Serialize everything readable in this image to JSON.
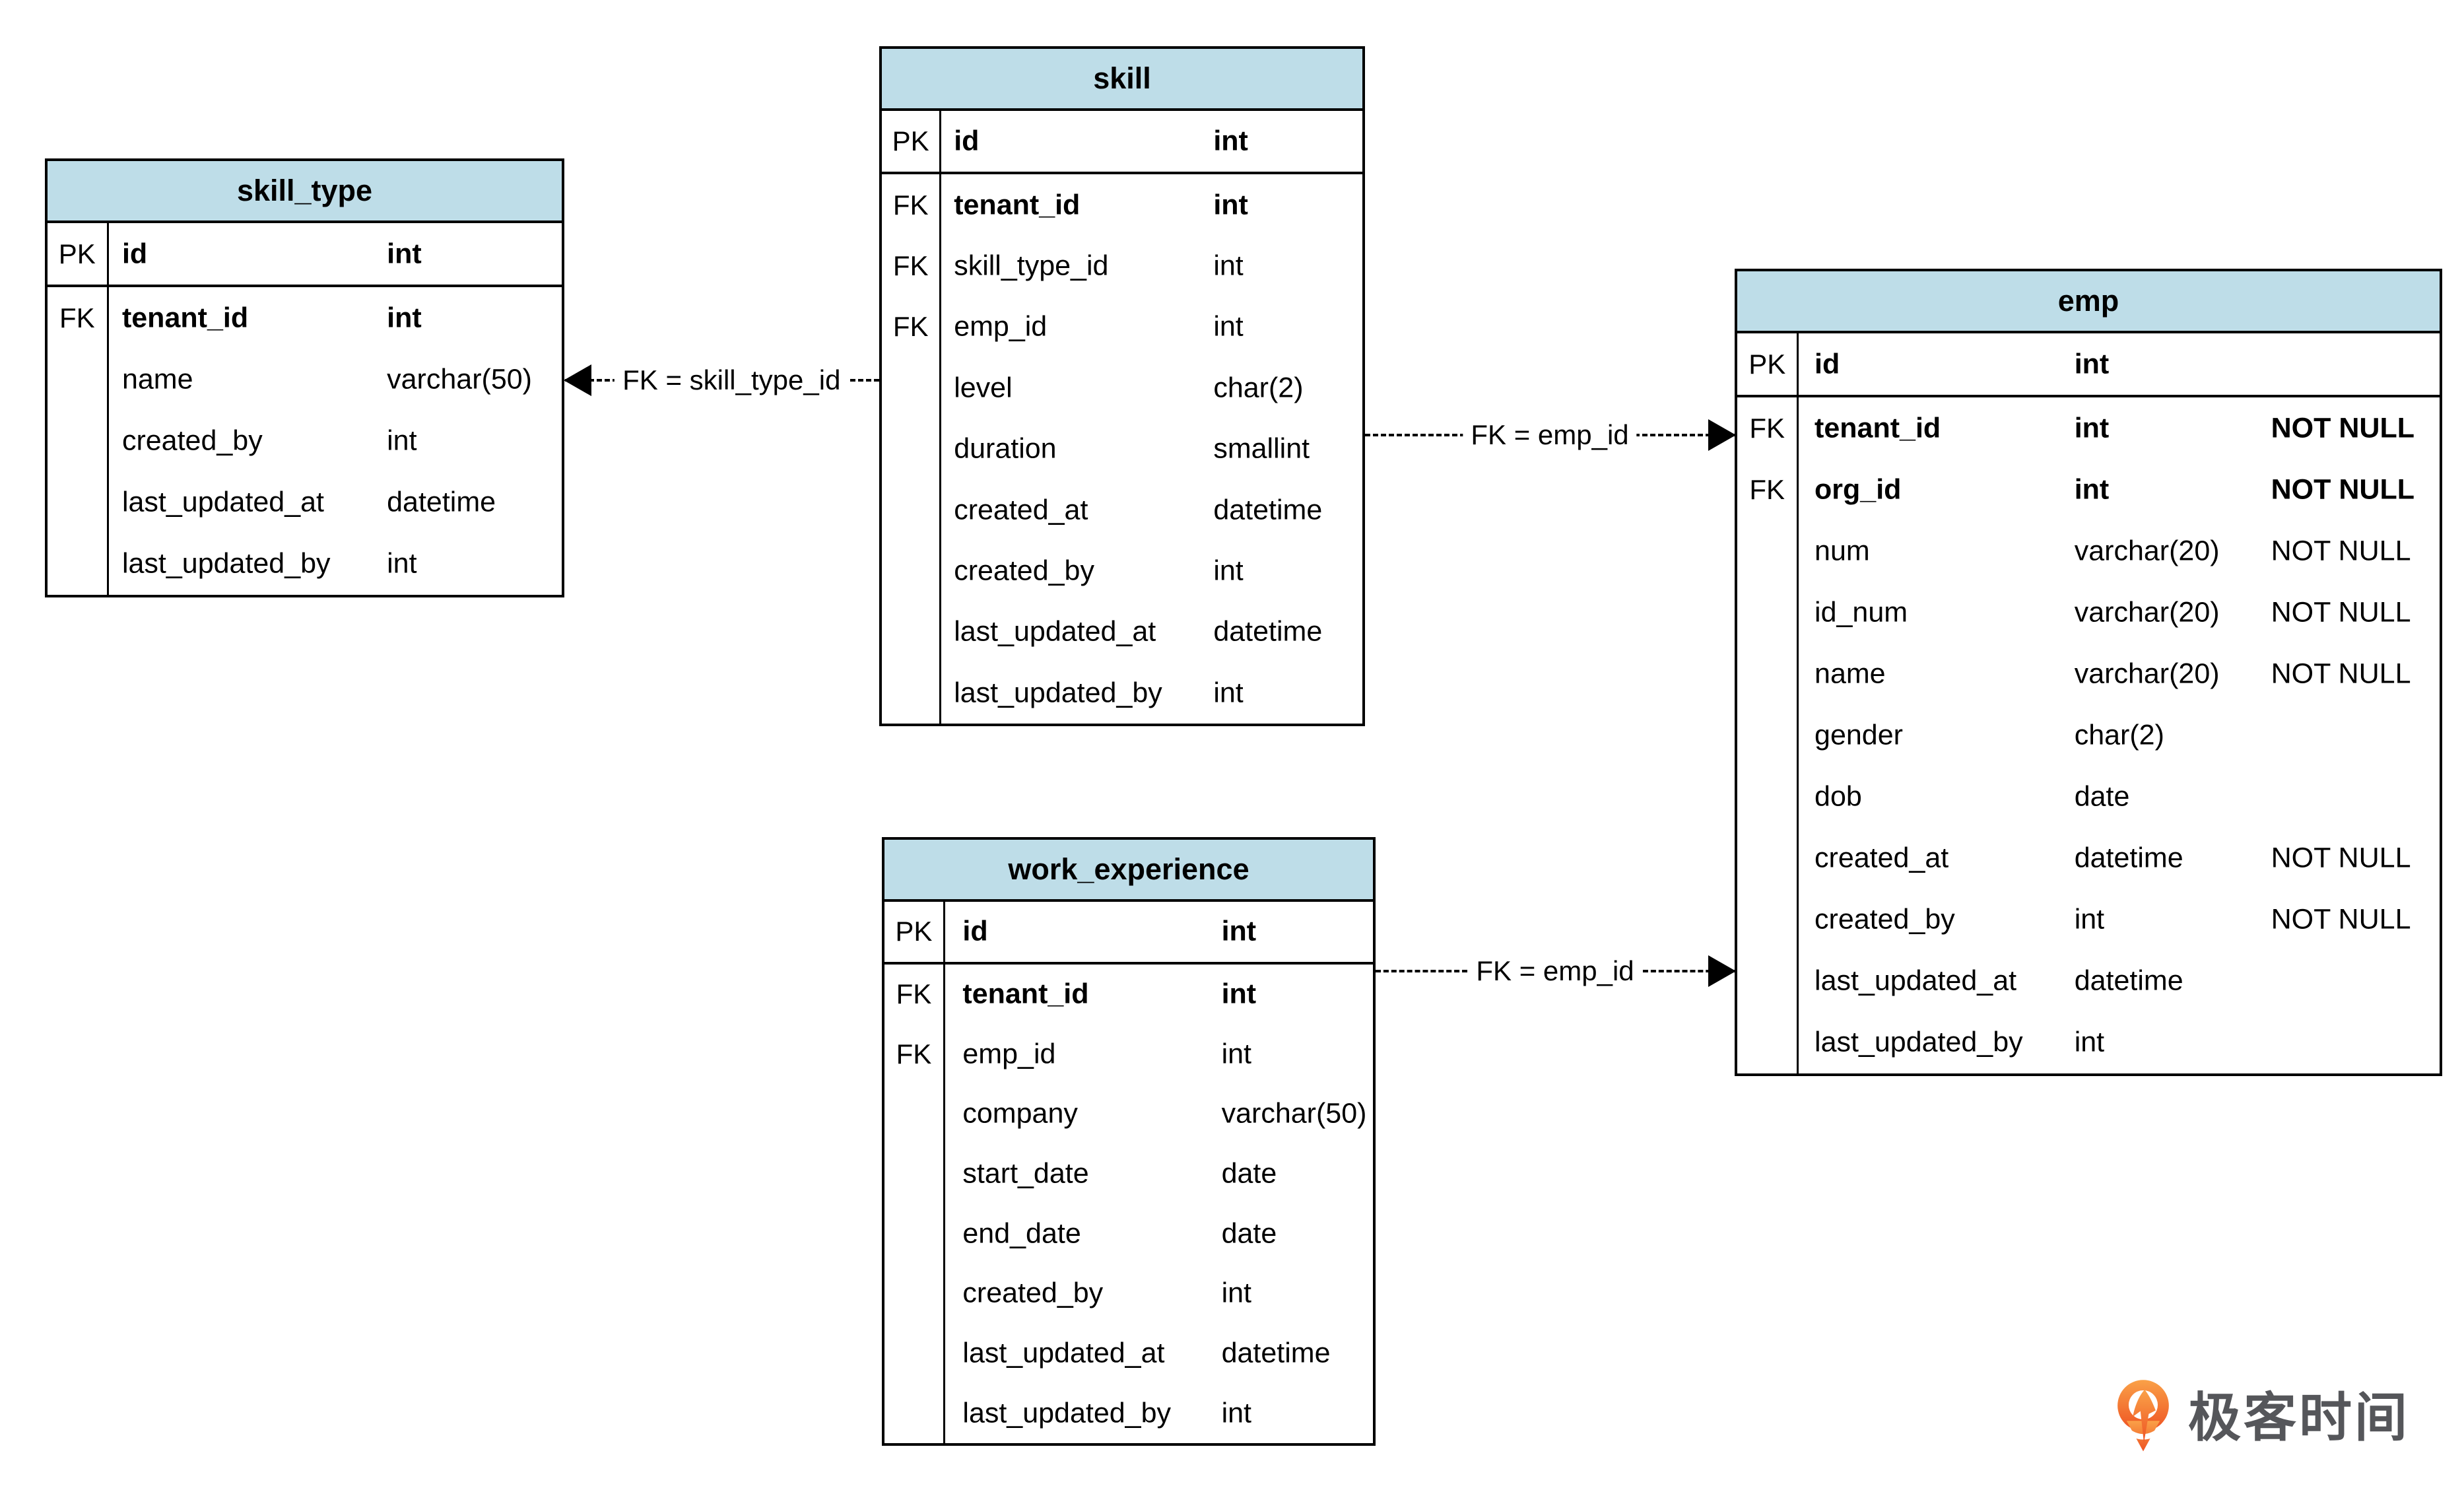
{
  "colors": {
    "table_header_bg": "#bedde8",
    "border": "#000000",
    "background": "#ffffff",
    "logo_orange_light": "#faa148",
    "logo_orange_dark": "#ee5222",
    "logo_text_color": "#55565a"
  },
  "tables": [
    {
      "title": "skill_type",
      "rows": [
        {
          "key": "PK",
          "field": "id",
          "type": "int",
          "constraint": "",
          "bold": true,
          "pk": true
        },
        {
          "key": "FK",
          "field": "tenant_id",
          "type": "int",
          "constraint": "",
          "bold": true
        },
        {
          "key": "",
          "field": "name",
          "type": "varchar(50)",
          "constraint": ""
        },
        {
          "key": "",
          "field": "created_by",
          "type": "int",
          "constraint": ""
        },
        {
          "key": "",
          "field": "last_updated_at",
          "type": "datetime",
          "constraint": ""
        },
        {
          "key": "",
          "field": "last_updated_by",
          "type": "int",
          "constraint": ""
        }
      ]
    },
    {
      "title": "skill",
      "rows": [
        {
          "key": "PK",
          "field": "id",
          "type": "int",
          "constraint": "",
          "bold": true,
          "pk": true
        },
        {
          "key": "FK",
          "field": "tenant_id",
          "type": "int",
          "constraint": "",
          "bold": true
        },
        {
          "key": "FK",
          "field": "skill_type_id",
          "type": "int",
          "constraint": ""
        },
        {
          "key": "FK",
          "field": "emp_id",
          "type": "int",
          "constraint": ""
        },
        {
          "key": "",
          "field": "level",
          "type": "char(2)",
          "constraint": ""
        },
        {
          "key": "",
          "field": "duration",
          "type": "smallint",
          "constraint": ""
        },
        {
          "key": "",
          "field": "created_at",
          "type": "datetime",
          "constraint": ""
        },
        {
          "key": "",
          "field": "created_by",
          "type": "int",
          "constraint": ""
        },
        {
          "key": "",
          "field": "last_updated_at",
          "type": "datetime",
          "constraint": ""
        },
        {
          "key": "",
          "field": "last_updated_by",
          "type": "int",
          "constraint": ""
        }
      ]
    },
    {
      "title": "work_experience",
      "rows": [
        {
          "key": "PK",
          "field": "id",
          "type": "int",
          "constraint": "",
          "bold": true,
          "pk": true
        },
        {
          "key": "FK",
          "field": "tenant_id",
          "type": "int",
          "constraint": "",
          "bold": true
        },
        {
          "key": "FK",
          "field": "emp_id",
          "type": "int",
          "constraint": ""
        },
        {
          "key": "",
          "field": "company",
          "type": "varchar(50)",
          "constraint": ""
        },
        {
          "key": "",
          "field": "start_date",
          "type": "date",
          "constraint": ""
        },
        {
          "key": "",
          "field": "end_date",
          "type": "date",
          "constraint": ""
        },
        {
          "key": "",
          "field": "created_by",
          "type": "int",
          "constraint": ""
        },
        {
          "key": "",
          "field": "last_updated_at",
          "type": "datetime",
          "constraint": ""
        },
        {
          "key": "",
          "field": "last_updated_by",
          "type": "int",
          "constraint": ""
        }
      ]
    },
    {
      "title": "emp",
      "rows": [
        {
          "key": "PK",
          "field": "id",
          "type": "int",
          "constraint": "",
          "bold": true,
          "pk": true
        },
        {
          "key": "FK",
          "field": "tenant_id",
          "type": "int",
          "constraint": "NOT NULL",
          "bold": true
        },
        {
          "key": "FK",
          "field": "org_id",
          "type": "int",
          "constraint": "NOT NULL",
          "bold": true
        },
        {
          "key": "",
          "field": "num",
          "type": "varchar(20)",
          "constraint": "NOT NULL"
        },
        {
          "key": "",
          "field": "id_num",
          "type": "varchar(20)",
          "constraint": "NOT NULL"
        },
        {
          "key": "",
          "field": "name",
          "type": "varchar(20)",
          "constraint": "NOT NULL"
        },
        {
          "key": "",
          "field": "gender",
          "type": "char(2)",
          "constraint": ""
        },
        {
          "key": "",
          "field": "dob",
          "type": "date",
          "constraint": ""
        },
        {
          "key": "",
          "field": "created_at",
          "type": "datetime",
          "constraint": "NOT NULL"
        },
        {
          "key": "",
          "field": "created_by",
          "type": "int",
          "constraint": "NOT NULL"
        },
        {
          "key": "",
          "field": "last_updated_at",
          "type": "datetime",
          "constraint": ""
        },
        {
          "key": "",
          "field": "last_updated_by",
          "type": "int",
          "constraint": ""
        }
      ]
    }
  ],
  "relations": [
    {
      "label": "FK = skill_type_id",
      "from_table": "skill",
      "to_table": "skill_type",
      "arrow_direction": "left"
    },
    {
      "label": "FK = emp_id",
      "from_table": "skill",
      "to_table": "emp",
      "arrow_direction": "right"
    },
    {
      "label": "FK = emp_id",
      "from_table": "work_experience",
      "to_table": "emp",
      "arrow_direction": "right"
    }
  ],
  "logo": {
    "text": "极客时间"
  }
}
